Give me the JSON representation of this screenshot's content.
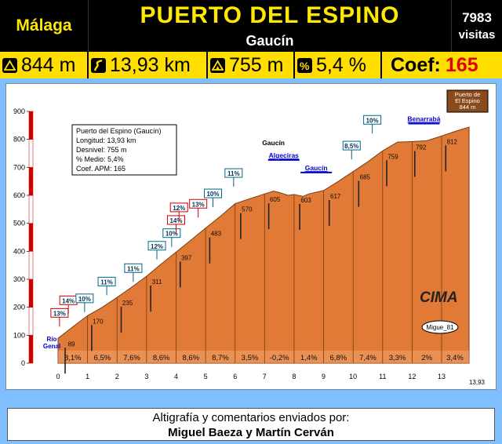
{
  "header": {
    "region": "Málaga",
    "title": "PUERTO DEL ESPINO",
    "subtitle": "Gaucín",
    "visits_count": "7983",
    "visits_label": "visitas"
  },
  "stats": {
    "altitude": "844 m",
    "distance": "13,93 km",
    "elevation_gain": "755 m",
    "avg_gradient": "5,4 %",
    "coef_label": "Coef:",
    "coef_value": "165"
  },
  "info_box": {
    "line1": "Puerto del Espino (Gaucín)",
    "line2": "Longitud: 13,93 km",
    "line3": "Desnivel: 755 m",
    "line4": "% Medio: 5,4%",
    "line5": "Coef. APM: 165"
  },
  "summit_label": [
    "Puerto de",
    "El Espino",
    "844 m"
  ],
  "logo": "CIMA",
  "author_tag": "Migue_81",
  "colors": {
    "profile": "#e07a36",
    "profile_dark": "#c25f1e",
    "title": "#ffe800",
    "coef": "#e00000",
    "background": "#7fbfff"
  },
  "footer": {
    "line1": "Altigrafía y comentarios enviados por:",
    "line2": "Miguel Baeza y Martín Cerván"
  },
  "chart_data": {
    "type": "area",
    "xlim": [
      0,
      13.93
    ],
    "ylim": [
      0,
      900
    ],
    "x_ticks": [
      "0",
      "1",
      "2",
      "3",
      "4",
      "5",
      "6",
      "7",
      "8",
      "9",
      "10",
      "11",
      "12",
      "13"
    ],
    "x_end_label": "13,93",
    "y_ticks": [
      "0",
      "100",
      "200",
      "300",
      "400",
      "500",
      "600",
      "700",
      "800",
      "900"
    ],
    "profile": {
      "x": [
        0,
        0.5,
        1,
        1.5,
        2,
        2.5,
        3,
        3.5,
        4,
        4.5,
        5,
        5.5,
        6,
        6.5,
        7,
        7.3,
        7.5,
        7.8,
        8,
        8.3,
        8.5,
        9,
        9.5,
        10,
        10.5,
        11,
        11.5,
        12,
        12.5,
        13,
        13.5,
        13.93
      ],
      "y": [
        89,
        130,
        170,
        200,
        235,
        272,
        311,
        355,
        397,
        440,
        483,
        525,
        570,
        588,
        605,
        615,
        610,
        600,
        603,
        596,
        605,
        617,
        650,
        685,
        720,
        759,
        790,
        792,
        795,
        812,
        830,
        844
      ]
    },
    "km_gradients": [
      "8,1%",
      "6,5%",
      "7,6%",
      "8,6%",
      "8,6%",
      "8,7%",
      "3,5%",
      "-0,2%",
      "1,4%",
      "6,8%",
      "7,4%",
      "3,3%",
      "2%",
      "3,4%"
    ],
    "point_labels": [
      {
        "x": 0.4,
        "y": 89,
        "label": "89"
      },
      {
        "x": 1.3,
        "y": 170,
        "label": "170"
      },
      {
        "x": 2.3,
        "y": 235,
        "label": "235"
      },
      {
        "x": 3.3,
        "y": 311,
        "label": "311"
      },
      {
        "x": 4.3,
        "y": 397,
        "label": "397"
      },
      {
        "x": 5.3,
        "y": 483,
        "label": "483"
      },
      {
        "x": 6.35,
        "y": 570,
        "label": "570"
      },
      {
        "x": 7.3,
        "y": 605,
        "label": "605"
      },
      {
        "x": 8.35,
        "y": 603,
        "label": "603"
      },
      {
        "x": 9.35,
        "y": 617,
        "label": "617"
      },
      {
        "x": 10.35,
        "y": 685,
        "label": "685"
      },
      {
        "x": 11.3,
        "y": 759,
        "label": "759"
      },
      {
        "x": 12.25,
        "y": 792,
        "label": "792"
      },
      {
        "x": 13.3,
        "y": 812,
        "label": "812"
      }
    ],
    "annotations": [
      {
        "x": 0.05,
        "y": 170,
        "label": "13%",
        "kind": "red"
      },
      {
        "x": 0.35,
        "y": 215,
        "label": "14%",
        "kind": "red"
      },
      {
        "x": 0.9,
        "y": 222,
        "label": "10%",
        "kind": "blue"
      },
      {
        "x": 1.65,
        "y": 282,
        "label": "11%",
        "kind": "blue"
      },
      {
        "x": 2.55,
        "y": 330,
        "label": "11%",
        "kind": "blue"
      },
      {
        "x": 3.35,
        "y": 410,
        "label": "12%",
        "kind": "blue"
      },
      {
        "x": 3.85,
        "y": 455,
        "label": "10%",
        "kind": "blue"
      },
      {
        "x": 4.0,
        "y": 502,
        "label": "14%",
        "kind": "red"
      },
      {
        "x": 4.1,
        "y": 547,
        "label": "12%",
        "kind": "red"
      },
      {
        "x": 4.75,
        "y": 560,
        "label": "13%",
        "kind": "red"
      },
      {
        "x": 5.25,
        "y": 597,
        "label": "10%",
        "kind": "blue"
      },
      {
        "x": 5.95,
        "y": 670,
        "label": "11%",
        "kind": "blue"
      },
      {
        "x": 9.95,
        "y": 768,
        "label": "8,5%",
        "kind": "blue"
      },
      {
        "x": 10.65,
        "y": 860,
        "label": "10%",
        "kind": "blue"
      }
    ],
    "places": [
      {
        "x": 7.3,
        "y": 780,
        "label": "Gaucín",
        "color": "#000"
      },
      {
        "x": 7.65,
        "y": 735,
        "label": "Algeciras",
        "color": "#0000cc"
      },
      {
        "x": 8.75,
        "y": 690,
        "label": "Gaucín",
        "color": "#0000cc"
      },
      {
        "x": 12.4,
        "y": 865,
        "label": "Benarrabá",
        "color": "#0000cc"
      },
      {
        "x": 0,
        "y": 90,
        "label": "Río Genal",
        "color": "#0000cc"
      }
    ]
  }
}
